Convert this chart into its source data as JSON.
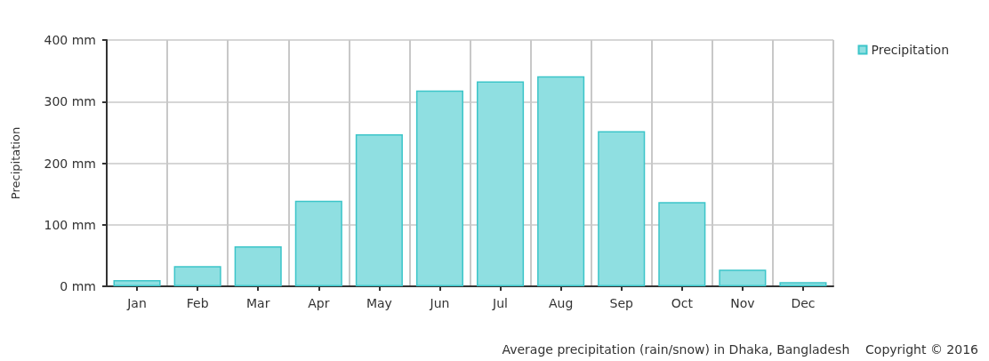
{
  "chart_data": {
    "type": "bar",
    "ylabel": "Precipitation",
    "categories": [
      "Jan",
      "Feb",
      "Mar",
      "Apr",
      "May",
      "Jun",
      "Jul",
      "Aug",
      "Sep",
      "Oct",
      "Nov",
      "Dec"
    ],
    "series": [
      {
        "name": "Precipitation",
        "color": "#8fdfe1",
        "values": [
          10,
          33,
          65,
          139,
          247,
          318,
          333,
          341,
          252,
          137,
          27,
          7
        ]
      }
    ],
    "ylim": [
      0,
      400
    ],
    "yticks": [
      {
        "value": 0,
        "label": "0 mm"
      },
      {
        "value": 100,
        "label": "100 mm"
      },
      {
        "value": 200,
        "label": "200 mm"
      },
      {
        "value": 300,
        "label": "300 mm"
      },
      {
        "value": 400,
        "label": "400 mm"
      }
    ],
    "grid": true,
    "legend": "top right",
    "annotations": [
      "Average precipitation (rain/snow) in Dhaka, Bangladesh",
      "Copyright © 2016"
    ]
  }
}
